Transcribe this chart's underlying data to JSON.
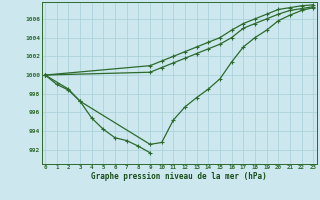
{
  "title": "Graphe pression niveau de la mer (hPa)",
  "xlabel_hours": [
    0,
    1,
    2,
    3,
    4,
    5,
    6,
    7,
    8,
    9,
    10,
    11,
    12,
    13,
    14,
    15,
    16,
    17,
    18,
    19,
    20,
    21,
    22,
    23
  ],
  "yticks": [
    992,
    994,
    996,
    998,
    1000,
    1002,
    1004,
    1006
  ],
  "ylim": [
    990.5,
    1007.8
  ],
  "xlim": [
    -0.3,
    23.3
  ],
  "line_color": "#2d6a2d",
  "bg_color": "#cce8ee",
  "grid_color": "#a8cfd8",
  "title_color": "#1a4d1a",
  "markersize": 2.8,
  "linewidth": 0.9,
  "line1_x": [
    0,
    1,
    2,
    3,
    4,
    5,
    6,
    7,
    8,
    9
  ],
  "line1_y": [
    1000,
    999.0,
    998.4,
    997.2,
    995.4,
    994.2,
    993.3,
    993.0,
    992.4,
    991.7
  ],
  "line2_x": [
    0,
    2,
    3,
    9,
    10,
    11,
    12,
    13,
    14,
    15,
    16,
    17,
    18,
    19,
    20,
    21,
    22,
    23
  ],
  "line2_y": [
    1000,
    998.5,
    997.2,
    992.6,
    992.8,
    995.2,
    996.6,
    997.6,
    998.5,
    999.6,
    1001.4,
    1003.0,
    1004.0,
    1004.8,
    1005.8,
    1006.4,
    1006.9,
    1007.2
  ],
  "line3_x": [
    0,
    9,
    10,
    11,
    12,
    13,
    14,
    15,
    16,
    17,
    18,
    19,
    20,
    21,
    22,
    23
  ],
  "line3_y": [
    1000,
    1000.3,
    1000.8,
    1001.3,
    1001.8,
    1002.3,
    1002.8,
    1003.3,
    1004.0,
    1005.0,
    1005.5,
    1006.0,
    1006.5,
    1006.9,
    1007.1,
    1007.3
  ],
  "line4_x": [
    0,
    9,
    10,
    11,
    12,
    13,
    14,
    15,
    16,
    17,
    18,
    19,
    20,
    21,
    22,
    23
  ],
  "line4_y": [
    1000,
    1001.0,
    1001.5,
    1002.0,
    1002.5,
    1003.0,
    1003.5,
    1004.0,
    1004.8,
    1005.5,
    1006.0,
    1006.5,
    1007.0,
    1007.2,
    1007.4,
    1007.5
  ]
}
